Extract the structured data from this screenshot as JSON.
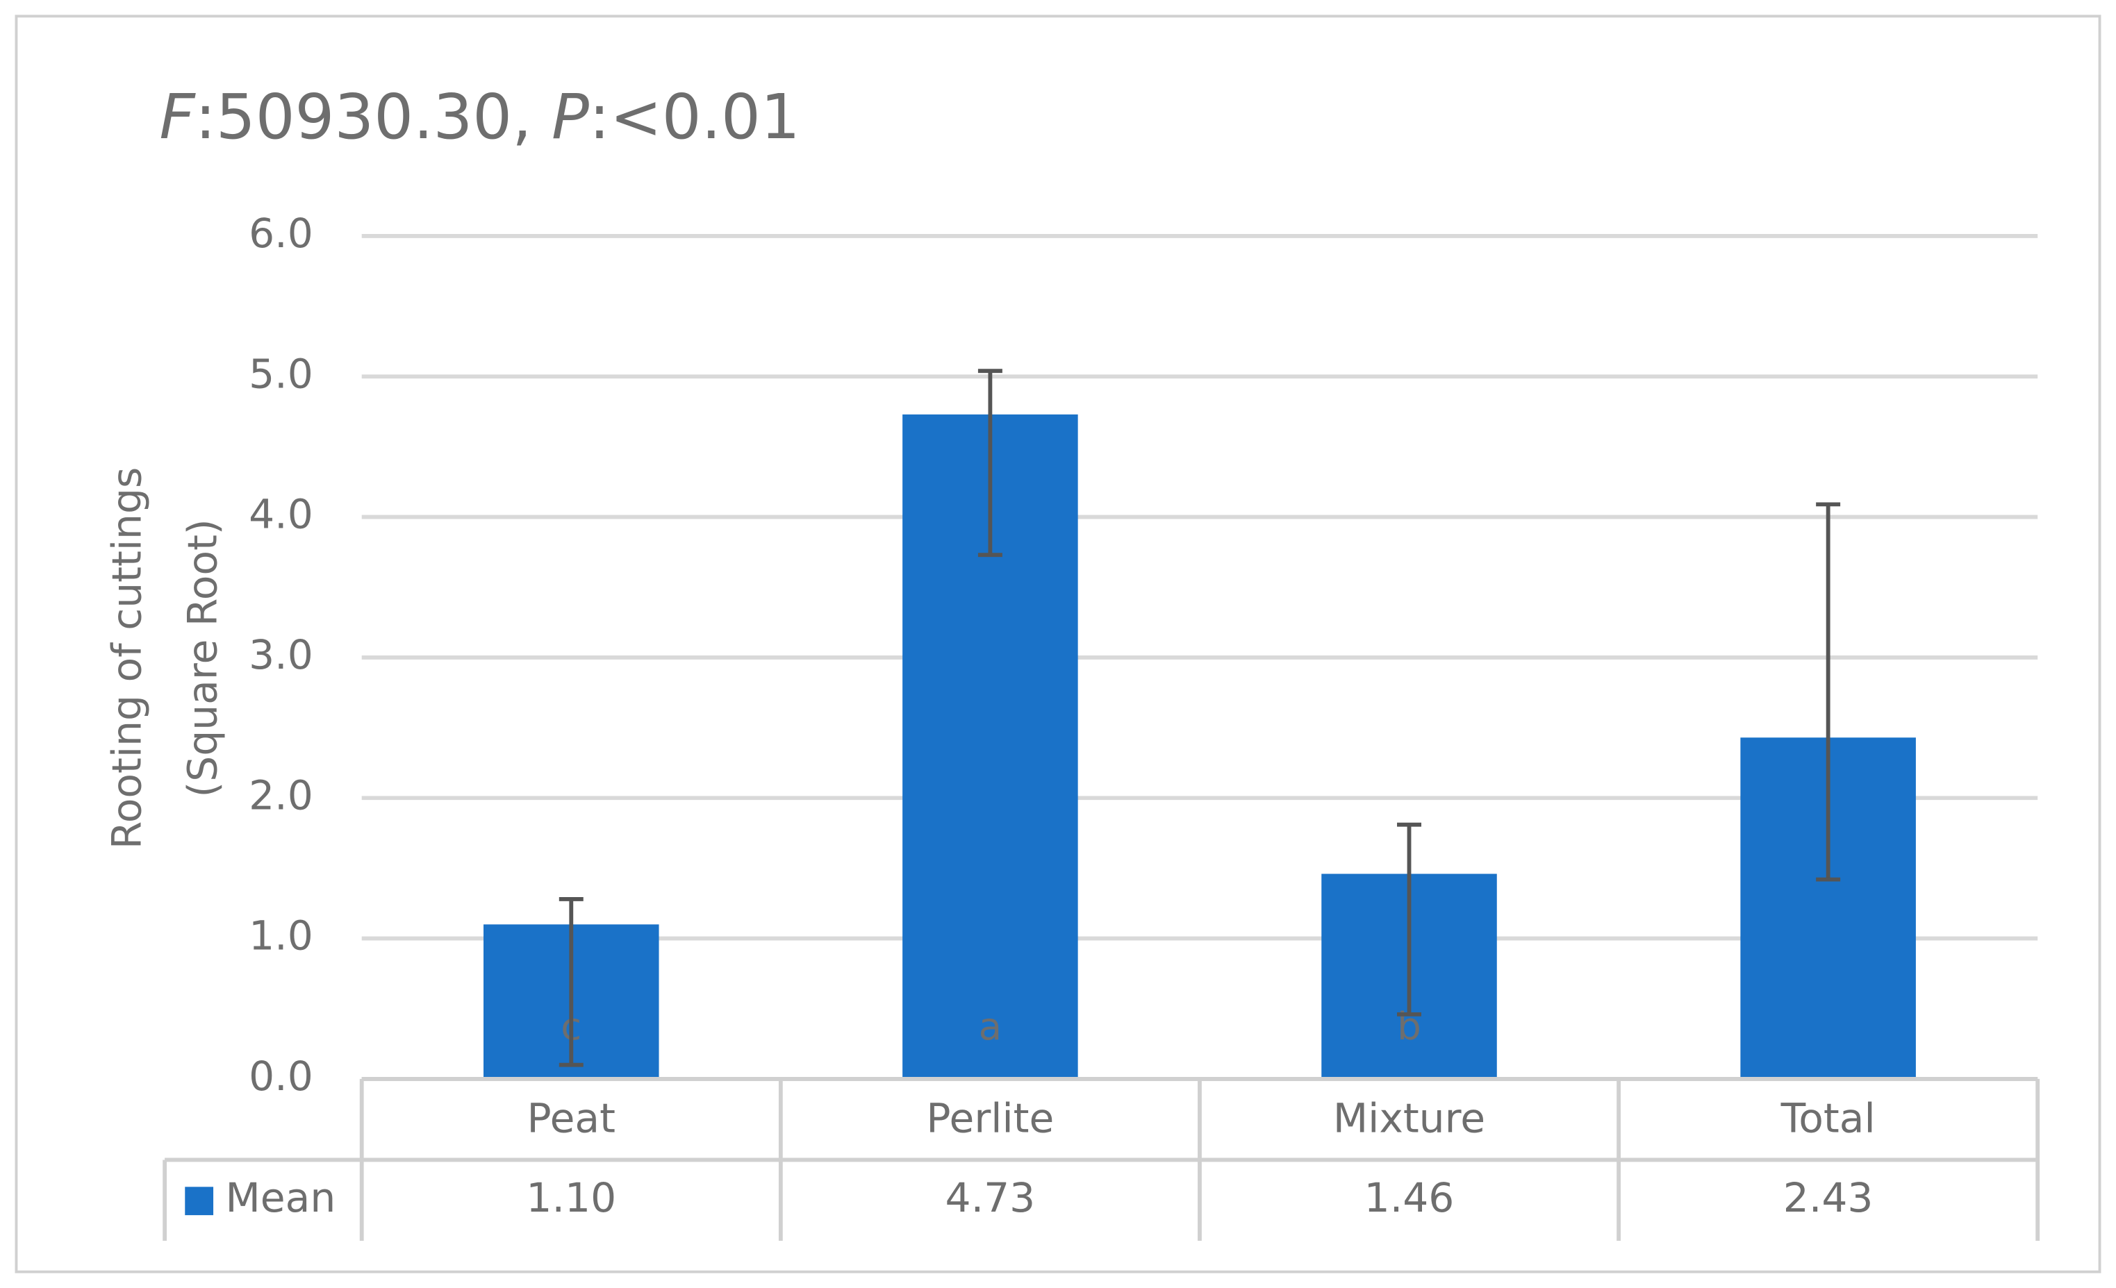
{
  "chart_data": {
    "type": "bar",
    "title": "F:50930.30, P:<0.01",
    "ylabel": [
      "Rooting of cuttings",
      "(Square Root)"
    ],
    "categories": [
      "Peat",
      "Perlite",
      "Mixture",
      "Total"
    ],
    "series": [
      {
        "name": "Mean",
        "color": "#1a72c8",
        "values": [
          1.1,
          4.73,
          1.46,
          2.43
        ],
        "value_labels": [
          "1.10",
          "4.73",
          "1.46",
          "2.43"
        ],
        "error_plus": [
          0.18,
          0.31,
          0.35,
          1.66
        ],
        "error_minus": [
          1.0,
          1.0,
          1.0,
          1.01
        ],
        "letters": [
          "c",
          "a",
          "b",
          null
        ]
      }
    ],
    "ylim": [
      0,
      6
    ],
    "yticks": [
      {
        "value": 0,
        "label": "0.0"
      },
      {
        "value": 1,
        "label": "1.0"
      },
      {
        "value": 2,
        "label": "2.0"
      },
      {
        "value": 3,
        "label": "3.0"
      },
      {
        "value": 4,
        "label": "4.0"
      },
      {
        "value": 5,
        "label": "5.0"
      },
      {
        "value": 6,
        "label": "6.0"
      }
    ],
    "grid": true,
    "data_table": true
  }
}
